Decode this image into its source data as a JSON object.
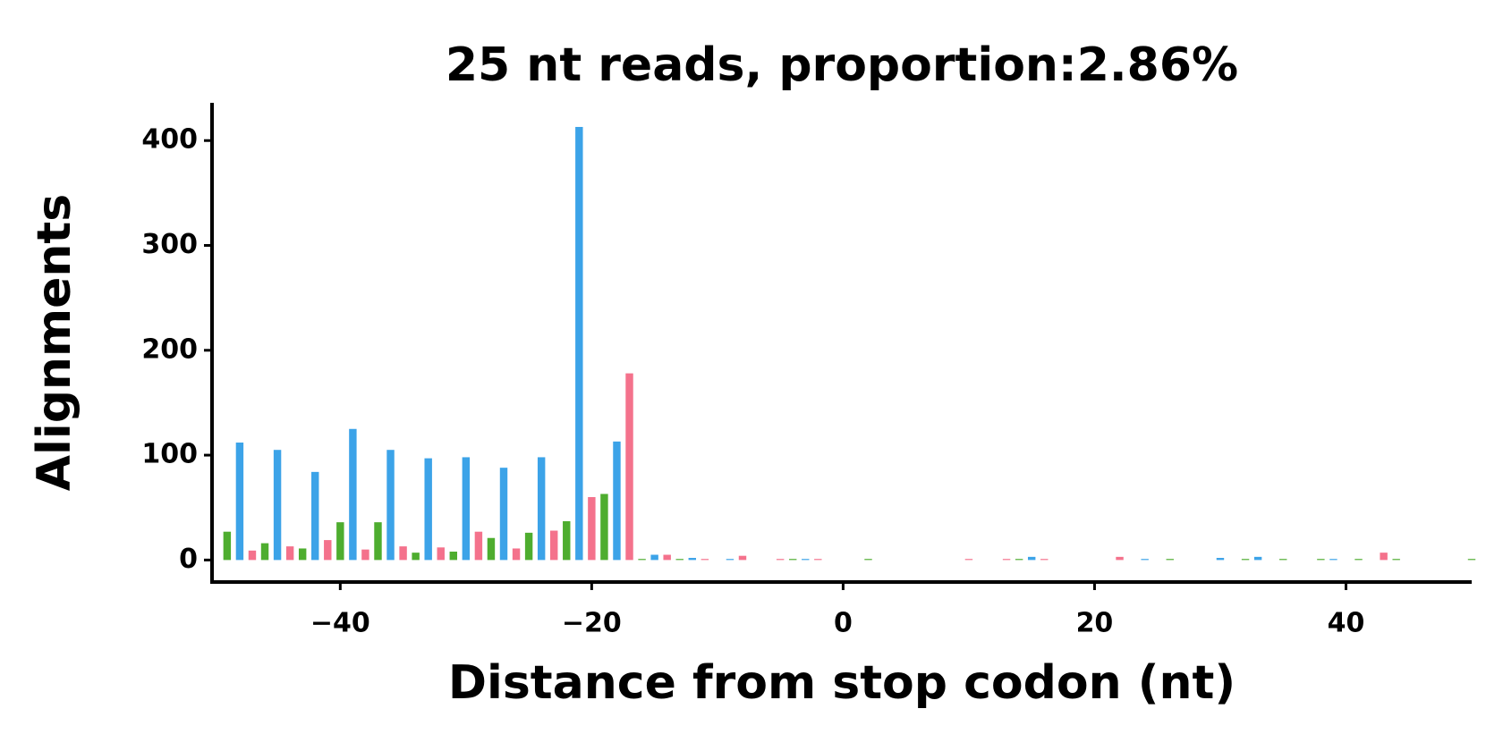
{
  "chart_data": {
    "type": "bar",
    "title": "25 nt reads, proportion:2.86%",
    "x_label": "Distance from stop codon (nt)",
    "y_label": "Alignments",
    "xlim": [
      -50.2,
      50
    ],
    "ylim": [
      -21,
      436
    ],
    "xticks": [
      {
        "value": -40,
        "label": "−40"
      },
      {
        "value": -20,
        "label": "−20"
      },
      0,
      20,
      40
    ],
    "yticks": [
      0,
      100,
      200,
      300,
      400
    ],
    "series": [
      {
        "color": "#3ca3e8",
        "x": [
          -48,
          -45,
          -42,
          -39,
          -36,
          -33,
          -30,
          -27,
          -24,
          -21,
          -18,
          -15,
          -12,
          -9,
          -3,
          15,
          24,
          30,
          33,
          39
        ],
        "values": [
          112,
          105,
          84,
          125,
          105,
          97,
          98,
          88,
          98,
          413,
          113,
          5,
          2,
          1,
          1,
          3,
          1,
          2,
          3,
          1
        ]
      },
      {
        "color": "#f4728c",
        "x": [
          -47,
          -44,
          -41,
          -38,
          -35,
          -32,
          -29,
          -26,
          -23,
          -20,
          -17,
          -14,
          -11,
          -8,
          -5,
          -2,
          10,
          13,
          16,
          22,
          43
        ],
        "values": [
          9,
          13,
          19,
          10,
          13,
          12,
          27,
          11,
          28,
          60,
          178,
          5,
          1,
          4,
          1,
          1,
          1,
          1,
          1,
          3,
          7
        ]
      },
      {
        "color": "#4ead2f",
        "x": [
          -49,
          -46,
          -43,
          -40,
          -37,
          -34,
          -31,
          -28,
          -25,
          -22,
          -19,
          -16,
          -13,
          -4,
          2,
          14,
          26,
          32,
          35,
          38,
          41,
          44,
          50
        ],
        "values": [
          27,
          16,
          11,
          36,
          36,
          7,
          8,
          21,
          26,
          37,
          63,
          1,
          1,
          1,
          1,
          1,
          1,
          1,
          1,
          1,
          1,
          1,
          1
        ]
      }
    ]
  }
}
